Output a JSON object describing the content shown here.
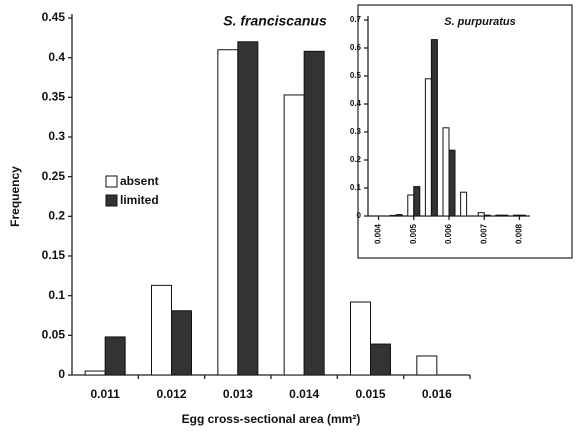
{
  "chart_data": [
    {
      "type": "bar",
      "title": "S. franciscanus",
      "x_label": "Egg cross-sectional area (mm²)",
      "y_label": "Frequency",
      "categories": [
        "0.011",
        "0.012",
        "0.013",
        "0.014",
        "0.015",
        "0.016"
      ],
      "series": [
        {
          "name": "absent",
          "color": "#ffffff",
          "values": [
            0.005,
            0.113,
            0.41,
            0.353,
            0.092,
            0.024
          ]
        },
        {
          "name": "limited",
          "color": "#333333",
          "values": [
            0.048,
            0.081,
            0.42,
            0.408,
            0.039,
            0
          ]
        }
      ],
      "ylim": [
        0,
        0.45
      ],
      "yticks": [
        0,
        0.05,
        0.1,
        0.15,
        0.2,
        0.25,
        0.3,
        0.35,
        0.4,
        0.45
      ],
      "grid": false
    },
    {
      "type": "bar",
      "title": "S. purpuratus",
      "x": [
        0.0045,
        0.005,
        0.0055,
        0.006,
        0.0065,
        0.007,
        0.0075,
        0.008
      ],
      "series": [
        {
          "name": "absent",
          "color": "#ffffff",
          "values": [
            0.002,
            0.075,
            0.49,
            0.315,
            0.085,
            0.012,
            0.003,
            0.003
          ]
        },
        {
          "name": "limited",
          "color": "#333333",
          "values": [
            0.005,
            0.105,
            0.63,
            0.235,
            0,
            0.003,
            0.003,
            0.003
          ]
        }
      ],
      "xlim": [
        0.0037,
        0.0083
      ],
      "xticks": [
        0.004,
        0.005,
        0.006,
        0.007,
        0.008
      ],
      "ylim": [
        0,
        0.7
      ],
      "yticks": [
        0,
        0.1,
        0.2,
        0.3,
        0.4,
        0.5,
        0.6,
        0.7
      ],
      "grid": false
    }
  ]
}
